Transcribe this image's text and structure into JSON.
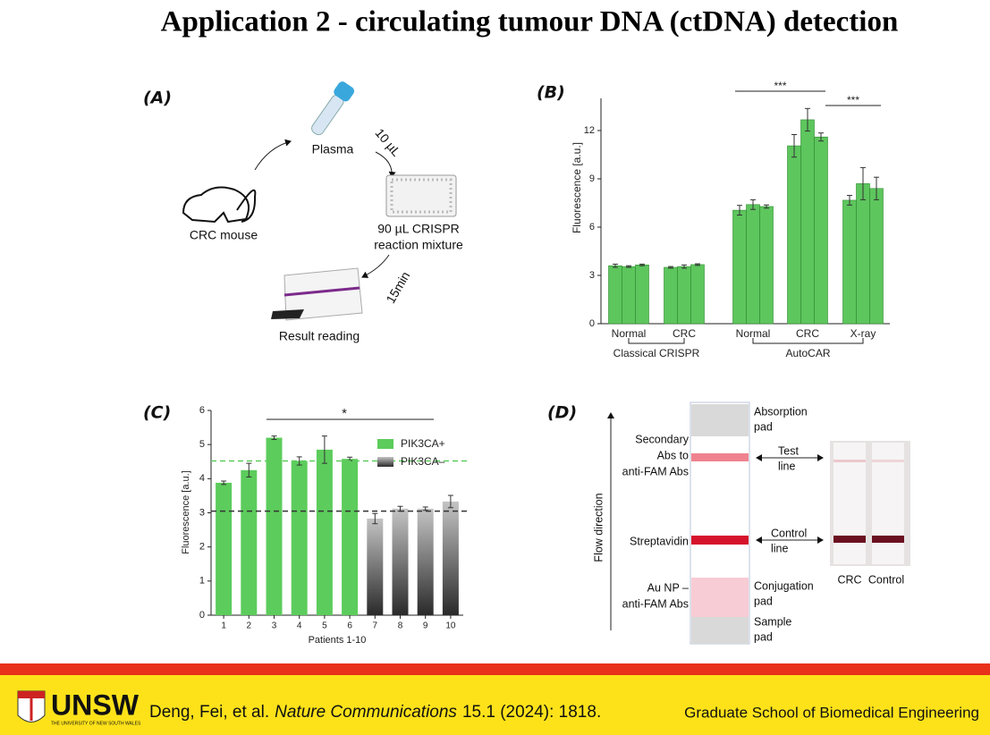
{
  "title": "Application 2  - circulating tumour DNA (ctDNA) detection",
  "panel_a": {
    "label": "(A)",
    "plasma": "Plasma",
    "volume": "10 µL",
    "mouse": "CRC mouse",
    "mixture": [
      "90 µL CRISPR",
      "reaction mixture"
    ],
    "time": "15min",
    "reading": "Result reading"
  },
  "chart_data": [
    {
      "type": "grouped_bar",
      "panel": "(B)",
      "ylabel": "Fluorescence [a.u.]",
      "categories": [
        "Normal",
        "CRC",
        "Normal",
        "CRC",
        "X-ray"
      ],
      "groups": [
        "Classical CRISPR",
        "AutoCAR"
      ],
      "values": [
        [
          3.6,
          3.55,
          3.65
        ],
        [
          3.5,
          3.55,
          3.67
        ],
        [
          7.05,
          7.4,
          7.28
        ],
        [
          11.05,
          12.67,
          11.6
        ],
        [
          7.67,
          8.7,
          8.4
        ]
      ],
      "errors": [
        [
          0.1,
          0.05,
          0.05
        ],
        [
          0.05,
          0.1,
          0.05
        ],
        [
          0.3,
          0.3,
          0.1
        ],
        [
          0.7,
          0.7,
          0.25
        ],
        [
          0.3,
          1.0,
          0.7
        ]
      ],
      "color": "#5dc65d",
      "ylim": [
        0,
        14
      ],
      "yticks": [
        0,
        3,
        6,
        9,
        12
      ],
      "significance": [
        "***",
        "***"
      ]
    },
    {
      "type": "bar",
      "panel": "(C)",
      "ylabel": "Fluorescence [a.u.]",
      "xlabel": "Patients 1-10",
      "categories": [
        "1",
        "2",
        "3",
        "4",
        "5",
        "6",
        "7",
        "8",
        "9",
        "10"
      ],
      "series": [
        {
          "name": "PIK3CA+",
          "color": "#5ccc5c",
          "values": [
            3.88,
            4.25,
            5.2,
            4.52,
            4.85,
            4.58,
            null,
            null,
            null,
            null
          ],
          "errors": [
            0.05,
            0.2,
            0.05,
            0.12,
            0.4,
            0.05,
            null,
            null,
            null,
            null
          ]
        },
        {
          "name": "PIK3CA–",
          "color": "#c4c4c4",
          "values": [
            null,
            null,
            null,
            null,
            null,
            null,
            2.83,
            3.12,
            3.12,
            3.33
          ],
          "errors": [
            null,
            null,
            null,
            null,
            null,
            null,
            0.15,
            0.07,
            0.05,
            0.18
          ]
        }
      ],
      "reference_lines": [
        {
          "value": 4.52,
          "color": "#5ccc5c"
        },
        {
          "value": 3.05,
          "color": "#333333"
        }
      ],
      "significance": "*",
      "ylim": [
        0,
        6
      ],
      "yticks": [
        0,
        1,
        2,
        3,
        4,
        5,
        6
      ]
    }
  ],
  "panel_d": {
    "label": "(D)",
    "flow": "Flow direction",
    "right": [
      [
        "Absorption",
        "pad"
      ],
      [
        "Test",
        "line"
      ],
      [
        "Control",
        "line"
      ],
      [
        "Conjugation",
        "pad"
      ],
      [
        "Sample",
        "pad"
      ]
    ],
    "left": [
      [
        "Secondary",
        "Abs to",
        "anti-FAM Abs"
      ],
      [
        "Streptavidin"
      ],
      [
        "Au NP –",
        "anti-FAM Abs"
      ]
    ],
    "photo": [
      "CRC",
      "Control"
    ]
  },
  "footer": {
    "logo": "UNSW",
    "logo_sub": "THE UNIVERSITY OF NEW SOUTH WALES",
    "citation": [
      "Deng, Fei, et al.",
      "Nature Communications",
      "15.1 (2024): 1818."
    ],
    "school": "Graduate School of Biomedical Engineering"
  }
}
